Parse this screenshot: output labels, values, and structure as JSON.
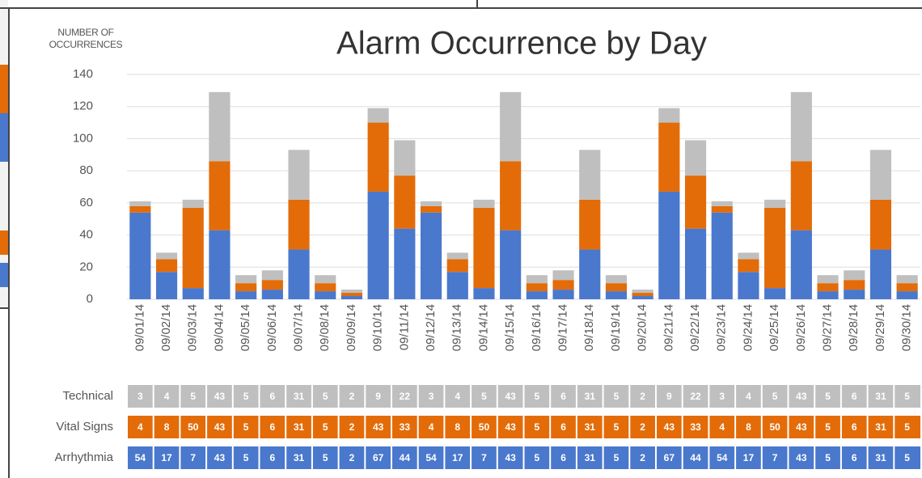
{
  "chart_data": {
    "type": "stacked_bar",
    "title": "Alarm Occurrence by Day",
    "y_label": "NUMBER OF OCCURRENCES",
    "categories": [
      "09/01/14",
      "09/02/14",
      "09/03/14",
      "09/04/14",
      "09/05/14",
      "09/06/14",
      "09/07/14",
      "09/08/14",
      "09/09/14",
      "09/10/14",
      "09/11/14",
      "09/12/14",
      "09/13/14",
      "09/14/14",
      "09/15/14",
      "09/16/14",
      "09/17/14",
      "09/18/14",
      "09/19/14",
      "09/20/14",
      "09/21/14",
      "09/22/14",
      "09/23/14",
      "09/24/14",
      "09/25/14",
      "09/26/14",
      "09/27/14",
      "09/28/14",
      "09/29/14",
      "09/30/14"
    ],
    "series": [
      {
        "name": "Technical",
        "color": "#bfbfbf",
        "values": [
          3,
          4,
          5,
          43,
          5,
          6,
          31,
          5,
          2,
          9,
          22,
          3,
          4,
          5,
          43,
          5,
          6,
          31,
          5,
          2,
          9,
          22,
          3,
          4,
          5,
          43,
          5,
          6,
          31,
          5
        ]
      },
      {
        "name": "Vital Signs",
        "color": "#e36c09",
        "values": [
          4,
          8,
          50,
          43,
          5,
          6,
          31,
          5,
          2,
          43,
          33,
          4,
          8,
          50,
          43,
          5,
          6,
          31,
          5,
          2,
          43,
          33,
          4,
          8,
          50,
          43,
          5,
          6,
          31,
          5
        ]
      },
      {
        "name": "Arrhythmia",
        "color": "#4a78cc",
        "values": [
          54,
          17,
          7,
          43,
          5,
          6,
          31,
          5,
          2,
          67,
          44,
          54,
          17,
          7,
          43,
          5,
          6,
          31,
          5,
          2,
          67,
          44,
          54,
          17,
          7,
          43,
          5,
          6,
          31,
          5
        ]
      }
    ],
    "ylim": [
      0,
      140
    ],
    "yticks": [
      0,
      20,
      40,
      60,
      80,
      100,
      120,
      140
    ],
    "grid": true
  }
}
